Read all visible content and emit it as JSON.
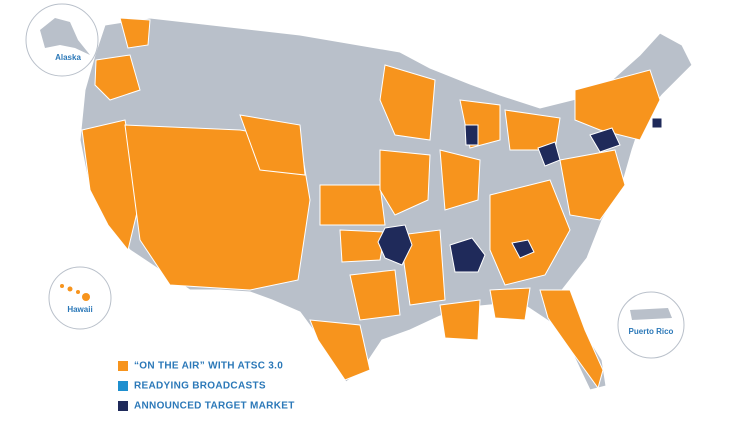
{
  "insets": {
    "alaska": "Alaska",
    "hawaii": "Hawaii",
    "puerto_rico": "Puerto Rico"
  },
  "legend": {
    "items": [
      {
        "label": "“ON THE AIR” WITH ATSC 3.0",
        "color": "#f7941d"
      },
      {
        "label": "READYING BROADCASTS",
        "color": "#1e8fcf"
      },
      {
        "label": "ANNOUNCED TARGET MARKET",
        "color": "#1f2a5a"
      }
    ]
  }
}
